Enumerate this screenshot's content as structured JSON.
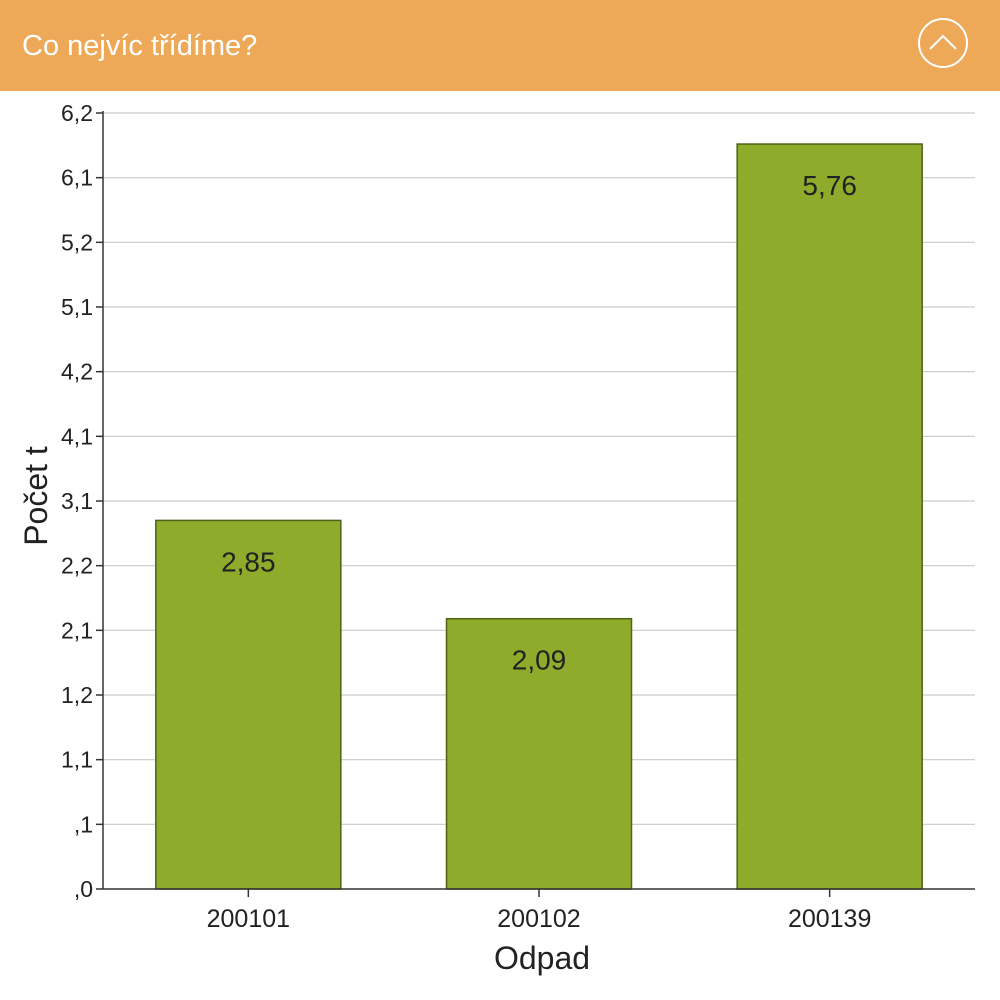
{
  "header": {
    "title": "Co nejvíc třídíme?",
    "background_color": "#EEA958",
    "collapse_icon": "chevron-up-icon"
  },
  "chart_data": {
    "type": "bar",
    "xlabel": "Odpad",
    "ylabel": "Počet t",
    "categories": [
      "200101",
      "200102",
      "200139"
    ],
    "values": [
      2.85,
      2.09,
      5.76
    ],
    "data_labels": [
      "2,85",
      "2,09",
      "5,76"
    ],
    "y_tick_labels": [
      ",0",
      ",1",
      "1,1",
      "1,2",
      "2,1",
      "2,2",
      "3,1",
      "4,1",
      "4,2",
      "5,1",
      "5,2",
      "6,1",
      "6,2"
    ],
    "ylim": [
      0,
      6
    ],
    "grid": true,
    "legend": "none",
    "bar_color": "#8EAB2B",
    "bar_edge_color": "#4E6218"
  }
}
